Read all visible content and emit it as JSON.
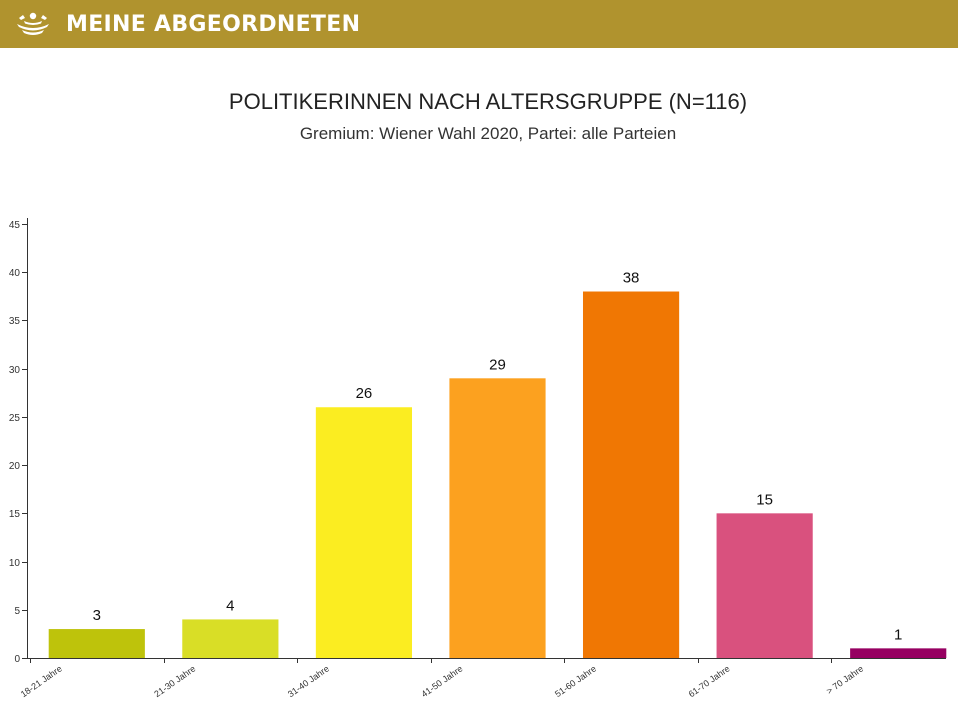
{
  "header": {
    "brand": "MEINE ABGEORDNETEN",
    "logo_icon": "parliament-seats-icon",
    "background_color": "#b0932e"
  },
  "chart_data": {
    "type": "bar",
    "title": "POLITIKERINNEN NACH ALTERSGRUPPE (N=116)",
    "subtitle": "Gremium: Wiener Wahl 2020, Partei: alle Parteien",
    "xlabel": "",
    "ylabel": "",
    "ylim": [
      0,
      45
    ],
    "yticks": [
      0,
      5,
      10,
      15,
      20,
      25,
      30,
      35,
      40,
      45
    ],
    "grid": false,
    "categories": [
      "18-21 Jahre",
      "21-30 Jahre",
      "31-40 Jahre",
      "41-50 Jahre",
      "51-60 Jahre",
      "61-70 Jahre",
      "> 70 Jahre"
    ],
    "values": [
      3,
      4,
      26,
      29,
      38,
      15,
      1
    ],
    "colors": [
      "#bec30b",
      "#d9de26",
      "#fbed21",
      "#fca11f",
      "#f07703",
      "#d9517e",
      "#960061"
    ]
  }
}
